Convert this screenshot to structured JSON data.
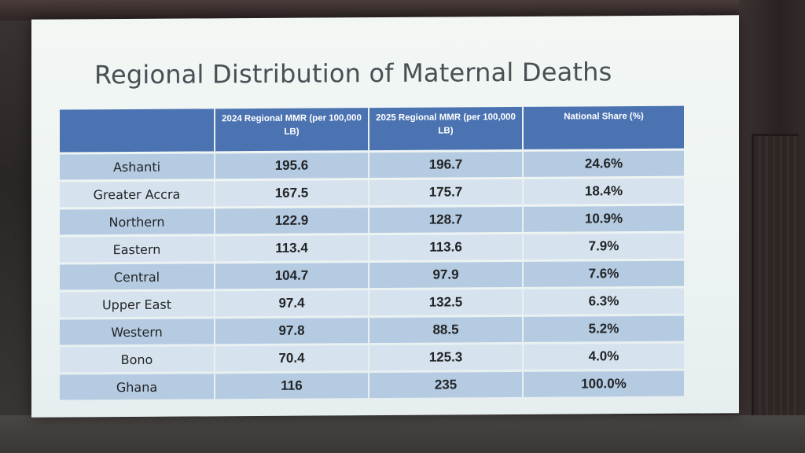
{
  "slide": {
    "title": "Regional Distribution of Maternal Deaths"
  },
  "table": {
    "headers": [
      "",
      "2024 Regional MMR (per 100,000 LB)",
      "2025 Regional MMR (per 100,000 LB)",
      "National Share (%)"
    ],
    "rows": [
      {
        "region": "Ashanti",
        "mmr_2024": "195.6",
        "mmr_2025": "196.7",
        "share": "24.6%"
      },
      {
        "region": "Greater Accra",
        "mmr_2024": "167.5",
        "mmr_2025": "175.7",
        "share": "18.4%"
      },
      {
        "region": "Northern",
        "mmr_2024": "122.9",
        "mmr_2025": "128.7",
        "share": "10.9%"
      },
      {
        "region": "Eastern",
        "mmr_2024": "113.4",
        "mmr_2025": "113.6",
        "share": "7.9%"
      },
      {
        "region": "Central",
        "mmr_2024": "104.7",
        "mmr_2025": "97.9",
        "share": "7.6%"
      },
      {
        "region": "Upper East",
        "mmr_2024": "97.4",
        "mmr_2025": "132.5",
        "share": "6.3%"
      },
      {
        "region": "Western",
        "mmr_2024": "97.8",
        "mmr_2025": "88.5",
        "share": "5.2%"
      },
      {
        "region": "Bono",
        "mmr_2024": "70.4",
        "mmr_2025": "125.3",
        "share": "4.0%"
      },
      {
        "region": "Ghana",
        "mmr_2024": "116",
        "mmr_2025": "235",
        "share": "100.0%"
      }
    ]
  },
  "colors": {
    "header_bg": "#4b73b2",
    "row_dark": "#b5cbe2",
    "row_light": "#d6e3ee",
    "title_text": "#4a4e55"
  }
}
